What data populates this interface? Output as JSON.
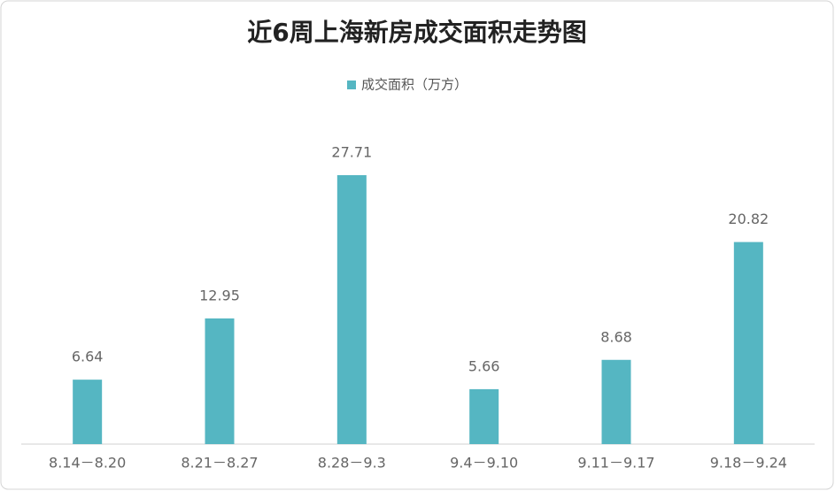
{
  "chart_data": {
    "type": "bar",
    "title": "近6周上海新房成交面积走势图",
    "categories": [
      "8.14－8.20",
      "8.21－8.27",
      "8.28－9.3",
      "9.4－9.10",
      "9.11－9.17",
      "9.18－9.24"
    ],
    "series": [
      {
        "name": "成交面积（万方）",
        "color": "#55b6c2",
        "values": [
          6.64,
          12.95,
          27.71,
          5.66,
          8.68,
          20.82
        ]
      }
    ]
  }
}
